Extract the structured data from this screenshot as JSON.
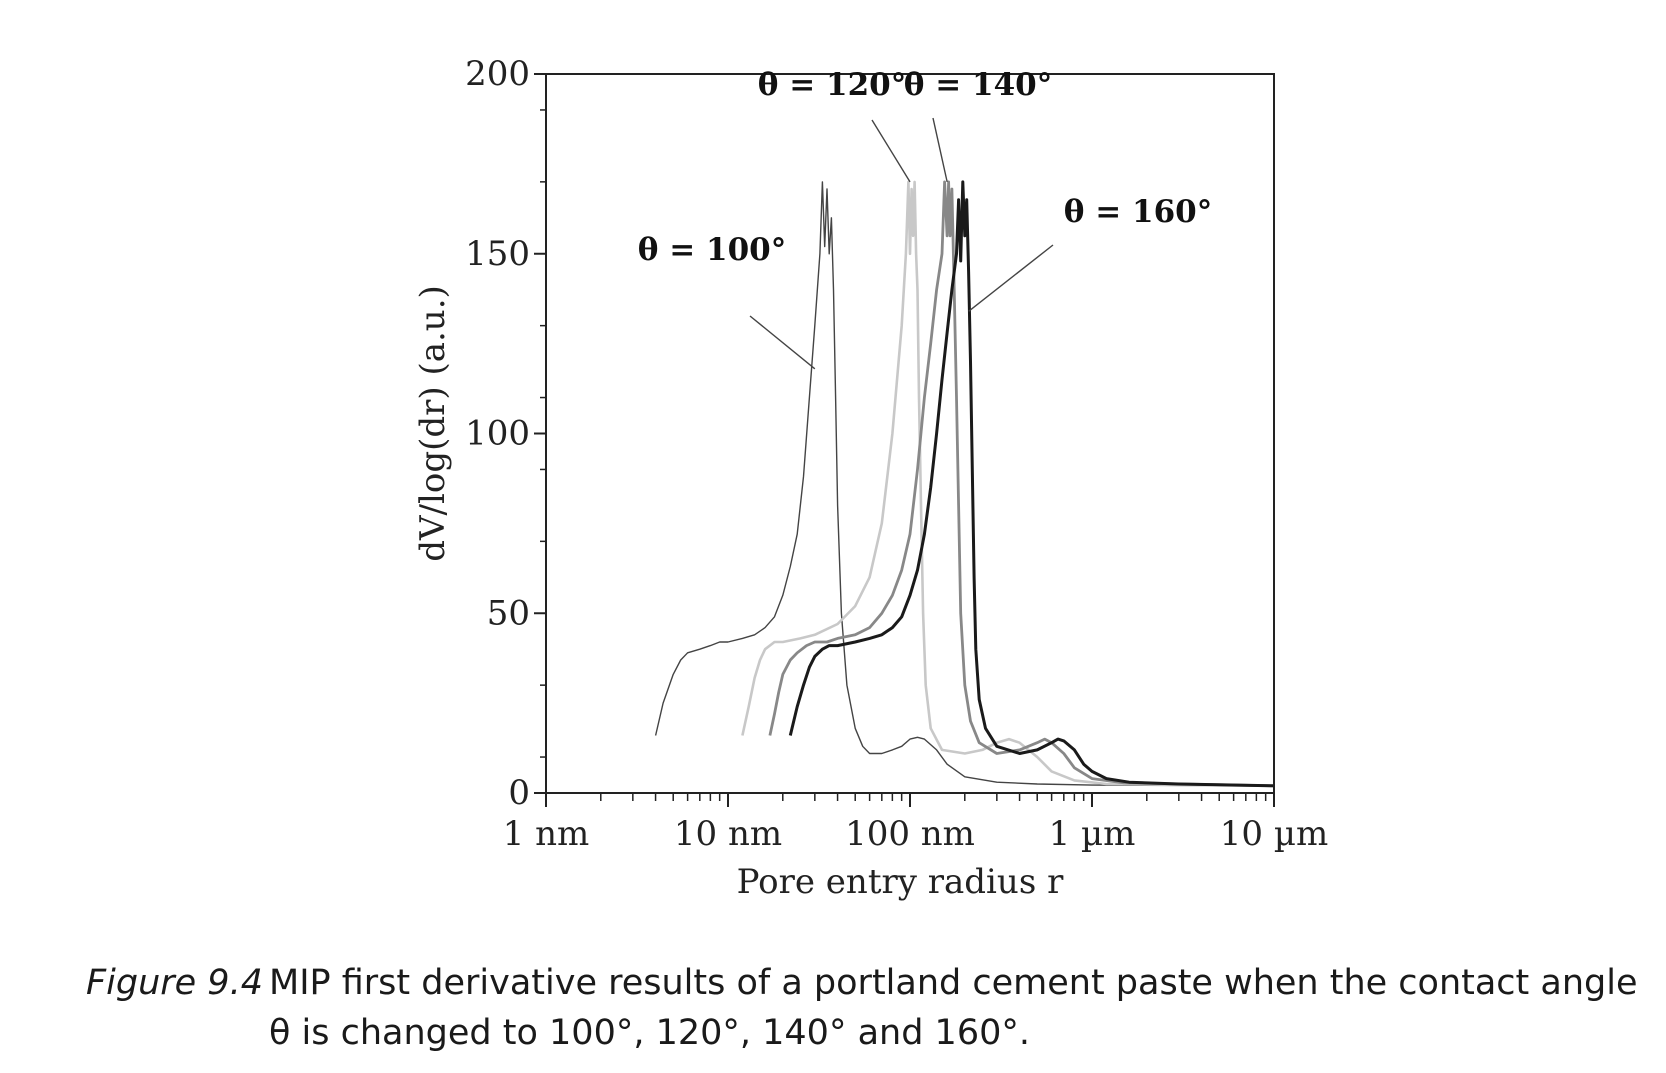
{
  "figure": {
    "label": "Figure 9.4",
    "caption": "MIP first derivative results of a portland cement paste when the contact angle θ is changed to 100°, 120°, 140° and 160°."
  },
  "chart_data": {
    "type": "line",
    "xlabel": "Pore entry radius r",
    "ylabel": "dV/log(dr) (a.u.)",
    "x_scale": "log",
    "x_unit": "nm",
    "xlim": [
      1,
      10000
    ],
    "ylim": [
      0,
      200
    ],
    "x_ticks": [
      {
        "value": 1,
        "label": "1 nm"
      },
      {
        "value": 10,
        "label": "10 nm"
      },
      {
        "value": 100,
        "label": "100 nm"
      },
      {
        "value": 1000,
        "label": "1 µm"
      },
      {
        "value": 10000,
        "label": "10 µm"
      }
    ],
    "y_ticks": [
      0,
      50,
      100,
      150,
      200
    ],
    "y_tick_labels": [
      "0",
      "50",
      "100",
      "150",
      "200"
    ],
    "series": [
      {
        "name": "θ = 100°",
        "color": "#444444",
        "points": [
          [
            4.0,
            16
          ],
          [
            4.4,
            25
          ],
          [
            5.0,
            33
          ],
          [
            5.5,
            37
          ],
          [
            6.0,
            39
          ],
          [
            7.0,
            40
          ],
          [
            8.0,
            41
          ],
          [
            9.0,
            42
          ],
          [
            10,
            42
          ],
          [
            12,
            43
          ],
          [
            14,
            44
          ],
          [
            16,
            46
          ],
          [
            18,
            49
          ],
          [
            20,
            55
          ],
          [
            22,
            63
          ],
          [
            24,
            72
          ],
          [
            26,
            88
          ],
          [
            28,
            110
          ],
          [
            30,
            130
          ],
          [
            32,
            150
          ],
          [
            33,
            170
          ],
          [
            34,
            152
          ],
          [
            35,
            168
          ],
          [
            36,
            150
          ],
          [
            37,
            160
          ],
          [
            38,
            140
          ],
          [
            39,
            110
          ],
          [
            40,
            80
          ],
          [
            42,
            50
          ],
          [
            45,
            30
          ],
          [
            50,
            18
          ],
          [
            55,
            13
          ],
          [
            60,
            11
          ],
          [
            70,
            11
          ],
          [
            80,
            12
          ],
          [
            90,
            13
          ],
          [
            100,
            15
          ],
          [
            110,
            15.5
          ],
          [
            120,
            15
          ],
          [
            140,
            12
          ],
          [
            160,
            8
          ],
          [
            200,
            4.5
          ],
          [
            300,
            3
          ],
          [
            500,
            2.5
          ],
          [
            1000,
            2.2
          ],
          [
            10000,
            2
          ]
        ]
      },
      {
        "name": "θ = 120°",
        "color": "#c8c8c8",
        "points": [
          [
            12,
            16
          ],
          [
            13,
            24
          ],
          [
            14,
            32
          ],
          [
            15,
            37
          ],
          [
            16,
            40
          ],
          [
            18,
            42
          ],
          [
            20,
            42
          ],
          [
            25,
            43
          ],
          [
            30,
            44
          ],
          [
            40,
            47
          ],
          [
            50,
            52
          ],
          [
            60,
            60
          ],
          [
            70,
            75
          ],
          [
            80,
            100
          ],
          [
            90,
            130
          ],
          [
            95,
            150
          ],
          [
            98,
            170
          ],
          [
            100,
            150
          ],
          [
            102,
            168
          ],
          [
            104,
            155
          ],
          [
            106,
            170
          ],
          [
            108,
            150
          ],
          [
            110,
            140
          ],
          [
            112,
            110
          ],
          [
            115,
            80
          ],
          [
            118,
            50
          ],
          [
            122,
            30
          ],
          [
            130,
            18
          ],
          [
            150,
            12
          ],
          [
            200,
            11
          ],
          [
            250,
            12
          ],
          [
            300,
            14
          ],
          [
            350,
            15
          ],
          [
            400,
            14
          ],
          [
            500,
            10
          ],
          [
            600,
            6
          ],
          [
            800,
            3.5
          ],
          [
            1200,
            2.5
          ],
          [
            10000,
            2
          ]
        ]
      },
      {
        "name": "θ = 140°",
        "color": "#888888",
        "points": [
          [
            17,
            16
          ],
          [
            18,
            22
          ],
          [
            19,
            28
          ],
          [
            20,
            33
          ],
          [
            22,
            37
          ],
          [
            24,
            39
          ],
          [
            27,
            41
          ],
          [
            30,
            42
          ],
          [
            35,
            42
          ],
          [
            40,
            43
          ],
          [
            50,
            44
          ],
          [
            60,
            46
          ],
          [
            70,
            50
          ],
          [
            80,
            55
          ],
          [
            90,
            62
          ],
          [
            100,
            72
          ],
          [
            110,
            90
          ],
          [
            120,
            110
          ],
          [
            130,
            125
          ],
          [
            140,
            140
          ],
          [
            150,
            150
          ],
          [
            155,
            170
          ],
          [
            160,
            155
          ],
          [
            163,
            170
          ],
          [
            166,
            155
          ],
          [
            170,
            168
          ],
          [
            175,
            140
          ],
          [
            180,
            110
          ],
          [
            185,
            80
          ],
          [
            190,
            50
          ],
          [
            200,
            30
          ],
          [
            215,
            20
          ],
          [
            240,
            14
          ],
          [
            300,
            11
          ],
          [
            400,
            12
          ],
          [
            500,
            14
          ],
          [
            550,
            15
          ],
          [
            600,
            14
          ],
          [
            700,
            11
          ],
          [
            800,
            7
          ],
          [
            1000,
            4
          ],
          [
            1500,
            2.8
          ],
          [
            10000,
            2
          ]
        ]
      },
      {
        "name": "θ = 160°",
        "color": "#1a1a1a",
        "points": [
          [
            22,
            16
          ],
          [
            24,
            24
          ],
          [
            26,
            30
          ],
          [
            28,
            35
          ],
          [
            30,
            38
          ],
          [
            33,
            40
          ],
          [
            36,
            41
          ],
          [
            40,
            41
          ],
          [
            50,
            42
          ],
          [
            60,
            43
          ],
          [
            70,
            44
          ],
          [
            80,
            46
          ],
          [
            90,
            49
          ],
          [
            100,
            55
          ],
          [
            110,
            62
          ],
          [
            120,
            72
          ],
          [
            130,
            85
          ],
          [
            140,
            100
          ],
          [
            150,
            115
          ],
          [
            160,
            128
          ],
          [
            170,
            140
          ],
          [
            180,
            150
          ],
          [
            185,
            165
          ],
          [
            190,
            148
          ],
          [
            195,
            170
          ],
          [
            200,
            155
          ],
          [
            205,
            165
          ],
          [
            210,
            145
          ],
          [
            215,
            120
          ],
          [
            220,
            90
          ],
          [
            225,
            60
          ],
          [
            230,
            40
          ],
          [
            240,
            26
          ],
          [
            260,
            18
          ],
          [
            300,
            13
          ],
          [
            400,
            11
          ],
          [
            500,
            12
          ],
          [
            600,
            14
          ],
          [
            650,
            15
          ],
          [
            700,
            14.5
          ],
          [
            800,
            12
          ],
          [
            900,
            8
          ],
          [
            1000,
            6
          ],
          [
            1200,
            4
          ],
          [
            1600,
            3
          ],
          [
            3000,
            2.5
          ],
          [
            10000,
            2
          ]
        ]
      }
    ],
    "annotations": [
      {
        "text": "θ = 100°",
        "series": "θ = 100°",
        "at_x": 30,
        "at_y": 118
      },
      {
        "text": "θ = 120°",
        "series": "θ = 120°",
        "at_x": 100,
        "at_y": 170
      },
      {
        "text": "θ = 140°",
        "series": "θ = 140°",
        "at_x": 160,
        "at_y": 170
      },
      {
        "text": "θ = 160°",
        "series": "θ = 160°",
        "at_x": 210,
        "at_y": 134
      }
    ],
    "grid": false,
    "legend": "none"
  }
}
